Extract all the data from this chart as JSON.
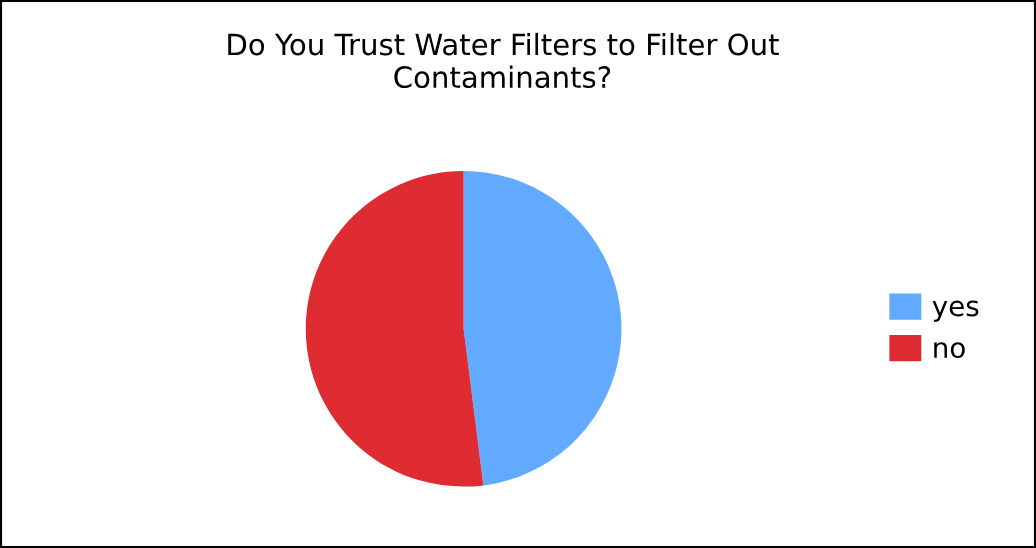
{
  "chart_data": {
    "type": "pie",
    "title": "Do You Trust Water Filters to Filter Out\nContaminants?",
    "categories": [
      "yes",
      "no"
    ],
    "values": [
      48,
      52
    ],
    "colors": [
      "#62aaff",
      "#de2c32"
    ],
    "legend": "right"
  }
}
